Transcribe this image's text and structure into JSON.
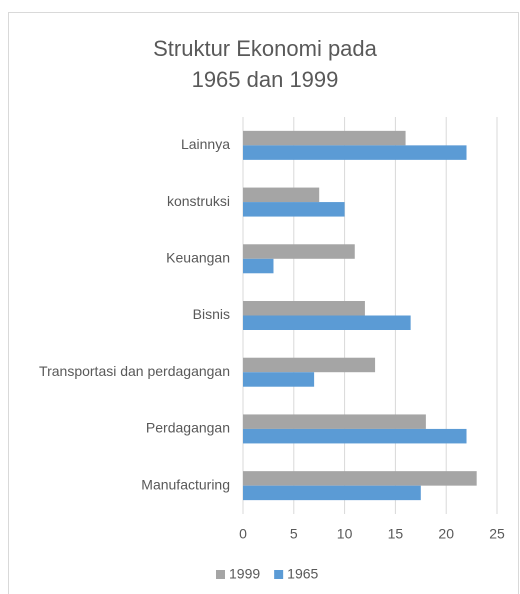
{
  "chart_data": {
    "type": "hbar",
    "title": "Struktur Ekonomi pada",
    "subtitle": "1965 dan 1999",
    "categories": [
      "Manufacturing",
      "Perdagangan",
      "Transportasi dan perdagangan",
      "Bisnis",
      "Keuangan",
      "konstruksi",
      "Lainnya"
    ],
    "series": [
      {
        "name": "1999",
        "color": "#a5a5a5",
        "values": [
          23,
          18,
          13,
          12,
          11,
          7.5,
          16
        ]
      },
      {
        "name": "1965",
        "color": "#5b9bd5",
        "values": [
          17.5,
          22,
          7,
          16.5,
          3,
          10,
          22
        ]
      }
    ],
    "xlim": [
      0,
      25
    ],
    "xticks": [
      0,
      5,
      10,
      15,
      20,
      25
    ],
    "grid": true,
    "legend": "bottom"
  }
}
